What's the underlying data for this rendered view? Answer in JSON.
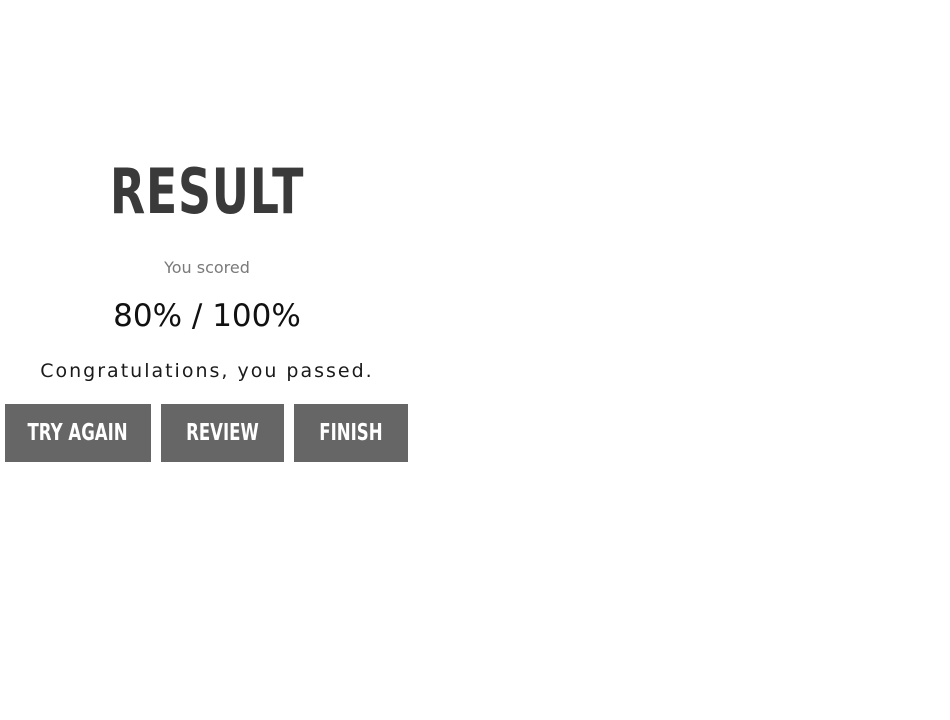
{
  "result": {
    "title": "RESULT",
    "scored_label": "You scored",
    "score": "80% / 100%",
    "message": "Congratulations, you passed."
  },
  "actions": {
    "try_again_label": "TRY AGAIN",
    "review_label": "REVIEW",
    "finish_label": "FINISH"
  },
  "colors": {
    "background": "#ffffff",
    "title": "#3a3a3a",
    "subtle_text": "#7a7a7a",
    "button_bg": "#666666",
    "button_text": "#ffffff"
  }
}
